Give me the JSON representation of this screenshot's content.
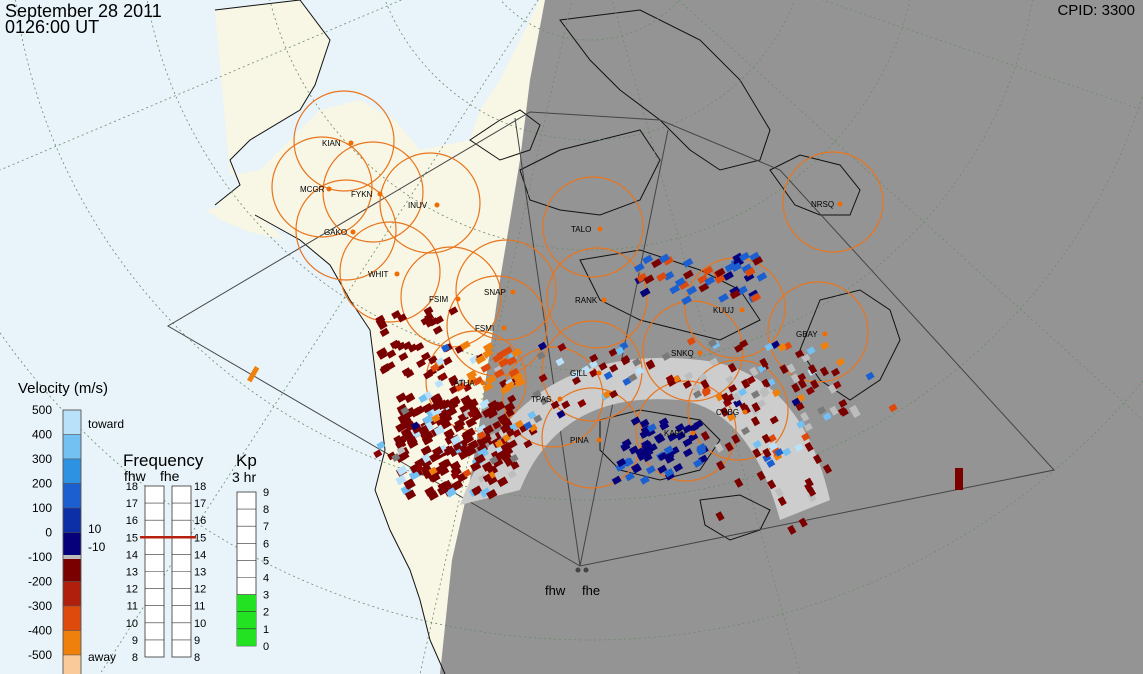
{
  "header": {
    "date": "September 28 2011",
    "time": "0126:00 UT",
    "cpid": "CPID:  3300"
  },
  "colors": {
    "ocean": "#e8f4fa",
    "land": "#f8f6e4",
    "night": "#949494",
    "coverage": "#cdcdcd",
    "radar_circle": "#e8751e",
    "station_dot": "#ef6c00",
    "toward_dark": "#06007a",
    "away_dark": "#7a0000"
  },
  "stations": [
    {
      "code": "KIAN"
    },
    {
      "code": "MCGR"
    },
    {
      "code": "FYKN"
    },
    {
      "code": "INUV"
    },
    {
      "code": "GAKO"
    },
    {
      "code": "WHIT"
    },
    {
      "code": "FSIM"
    },
    {
      "code": "SNAP"
    },
    {
      "code": "FSMI"
    },
    {
      "code": "RANK"
    },
    {
      "code": "TALO"
    },
    {
      "code": "NRSQ"
    },
    {
      "code": "KUUJ"
    },
    {
      "code": "GBAY"
    },
    {
      "code": "SNKQ"
    },
    {
      "code": "ATHA"
    },
    {
      "code": "GILL"
    },
    {
      "code": "TPAS"
    },
    {
      "code": "PINA"
    },
    {
      "code": "KAPU"
    },
    {
      "code": "CHBG"
    }
  ],
  "radars": [
    {
      "code": "fhw"
    },
    {
      "code": "fhe"
    }
  ],
  "velocity_scale": {
    "title": "Velocity (m/s)",
    "ticks": [
      "500",
      "400",
      "300",
      "200",
      "100",
      "0",
      "-100",
      "-200",
      "-300",
      "-400",
      "-500"
    ],
    "toward_label": "toward",
    "away_label": "away",
    "pos_threshold": "10",
    "neg_threshold": "-10",
    "colors": [
      "#b9e2fa",
      "#72c1f2",
      "#2e92e3",
      "#1c5fd0",
      "#0c2fa8",
      "#06007a",
      "#7a0000",
      "#b01e0c",
      "#dd4a0c",
      "#f0800c",
      "#fbca9a"
    ]
  },
  "frequency_panel": {
    "title": "Frequency",
    "radar_labels": [
      "fhw",
      "fhe"
    ],
    "ticks": [
      "18",
      "17",
      "16",
      "15",
      "14",
      "13",
      "12",
      "11",
      "10",
      "9",
      "8"
    ],
    "fhw_value_mhz": 15,
    "fhe_value_mhz": 15
  },
  "kp_panel": {
    "title": "Kp",
    "subtitle": "3 hr",
    "ticks": [
      "9",
      "8",
      "7",
      "6",
      "5",
      "4",
      "3",
      "2",
      "1",
      "0"
    ],
    "value": 3
  }
}
